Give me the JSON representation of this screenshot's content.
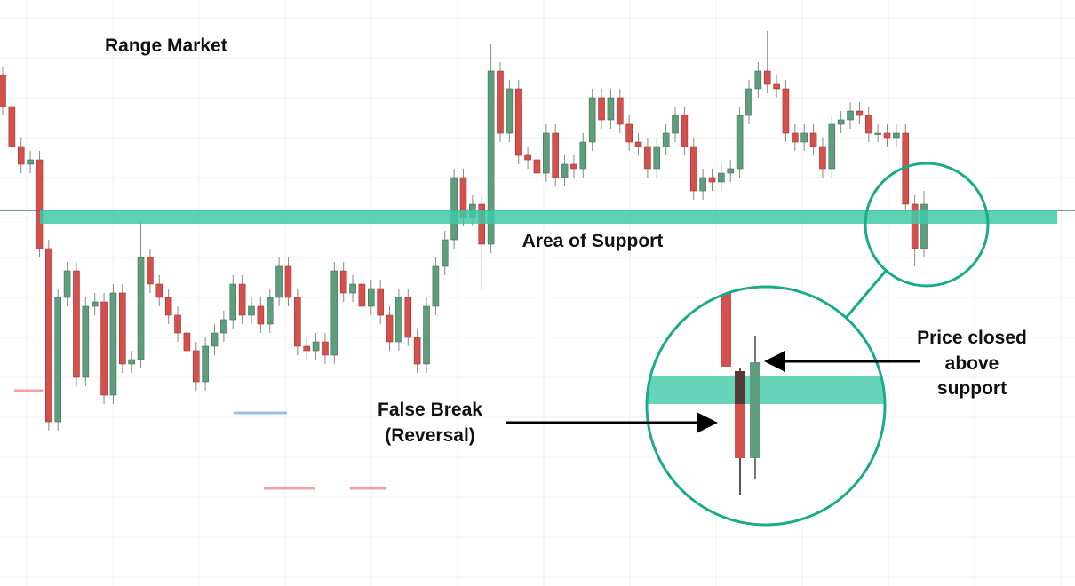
{
  "chart_data": {
    "type": "candlestick",
    "title": "Range Market",
    "open": [
      575,
      540,
      495,
      475,
      480,
      380,
      185,
      325,
      355,
      235,
      315,
      320,
      215,
      330,
      250,
      255,
      370,
      340,
      325,
      305,
      285,
      265,
      230,
      270,
      285,
      300,
      340,
      305,
      315,
      295,
      325,
      360,
      325,
      270,
      265,
      275,
      260,
      355,
      330,
      340,
      315,
      335,
      305,
      275,
      325,
      280,
      250,
      315,
      360,
      390,
      460,
      415,
      430,
      385,
      580,
      510,
      560,
      485,
      480,
      465,
      510,
      460,
      475,
      470,
      500,
      550,
      525,
      550,
      520,
      500,
      495,
      470,
      495,
      510,
      530,
      495,
      445,
      460,
      455,
      465,
      470,
      530,
      560,
      580,
      565,
      560,
      510,
      500,
      510,
      495,
      470,
      520,
      525,
      535,
      530,
      510,
      510,
      505,
      510,
      430,
      380
    ],
    "high": [
      585,
      550,
      505,
      490,
      490,
      390,
      335,
      365,
      365,
      325,
      330,
      330,
      340,
      340,
      265,
      410,
      380,
      350,
      335,
      315,
      295,
      275,
      280,
      295,
      310,
      350,
      350,
      325,
      325,
      335,
      370,
      370,
      335,
      280,
      285,
      285,
      365,
      365,
      350,
      350,
      345,
      345,
      315,
      335,
      335,
      290,
      325,
      370,
      400,
      470,
      470,
      440,
      440,
      610,
      590,
      570,
      570,
      495,
      490,
      520,
      520,
      485,
      485,
      510,
      560,
      560,
      560,
      560,
      530,
      510,
      505,
      505,
      520,
      540,
      540,
      505,
      470,
      470,
      475,
      480,
      540,
      570,
      590,
      625,
      575,
      570,
      520,
      520,
      520,
      505,
      530,
      535,
      545,
      545,
      540,
      520,
      520,
      520,
      520,
      440,
      445
    ],
    "low": [
      530,
      485,
      465,
      465,
      370,
      175,
      175,
      315,
      225,
      225,
      305,
      205,
      205,
      240,
      240,
      245,
      330,
      315,
      295,
      275,
      255,
      220,
      220,
      260,
      275,
      290,
      295,
      295,
      285,
      285,
      315,
      315,
      260,
      255,
      255,
      250,
      250,
      320,
      320,
      305,
      305,
      295,
      265,
      265,
      270,
      240,
      240,
      305,
      350,
      380,
      405,
      405,
      335,
      375,
      500,
      500,
      475,
      470,
      455,
      455,
      450,
      450,
      460,
      460,
      490,
      515,
      515,
      510,
      490,
      485,
      460,
      460,
      485,
      500,
      485,
      435,
      435,
      445,
      445,
      455,
      460,
      520,
      550,
      555,
      550,
      500,
      490,
      490,
      485,
      460,
      460,
      510,
      515,
      520,
      500,
      500,
      495,
      495,
      420,
      360,
      370
    ],
    "close": [
      540,
      495,
      475,
      480,
      380,
      185,
      325,
      355,
      235,
      315,
      320,
      215,
      330,
      250,
      255,
      370,
      340,
      325,
      305,
      285,
      265,
      230,
      270,
      285,
      300,
      340,
      305,
      315,
      295,
      325,
      360,
      325,
      270,
      265,
      275,
      260,
      355,
      330,
      340,
      315,
      335,
      305,
      275,
      325,
      280,
      250,
      315,
      360,
      390,
      460,
      415,
      430,
      385,
      580,
      510,
      560,
      485,
      480,
      465,
      510,
      460,
      475,
      470,
      500,
      550,
      525,
      550,
      520,
      500,
      495,
      470,
      495,
      510,
      530,
      495,
      445,
      460,
      455,
      465,
      470,
      530,
      560,
      580,
      565,
      560,
      510,
      500,
      510,
      495,
      470,
      520,
      525,
      535,
      530,
      510,
      510,
      505,
      510,
      430,
      380,
      430
    ],
    "up_color": "#5f9d7f",
    "down_color": "#d5504c",
    "ylim": [
      0,
      660
    ],
    "support_zone": [
      408,
      423
    ],
    "support_color": "#3fc9a6",
    "annotations": {
      "support": "Area of Support",
      "false_break": [
        "False Break",
        "(Reversal)"
      ],
      "close_above": [
        "Price closed",
        "above",
        "support"
      ]
    }
  }
}
